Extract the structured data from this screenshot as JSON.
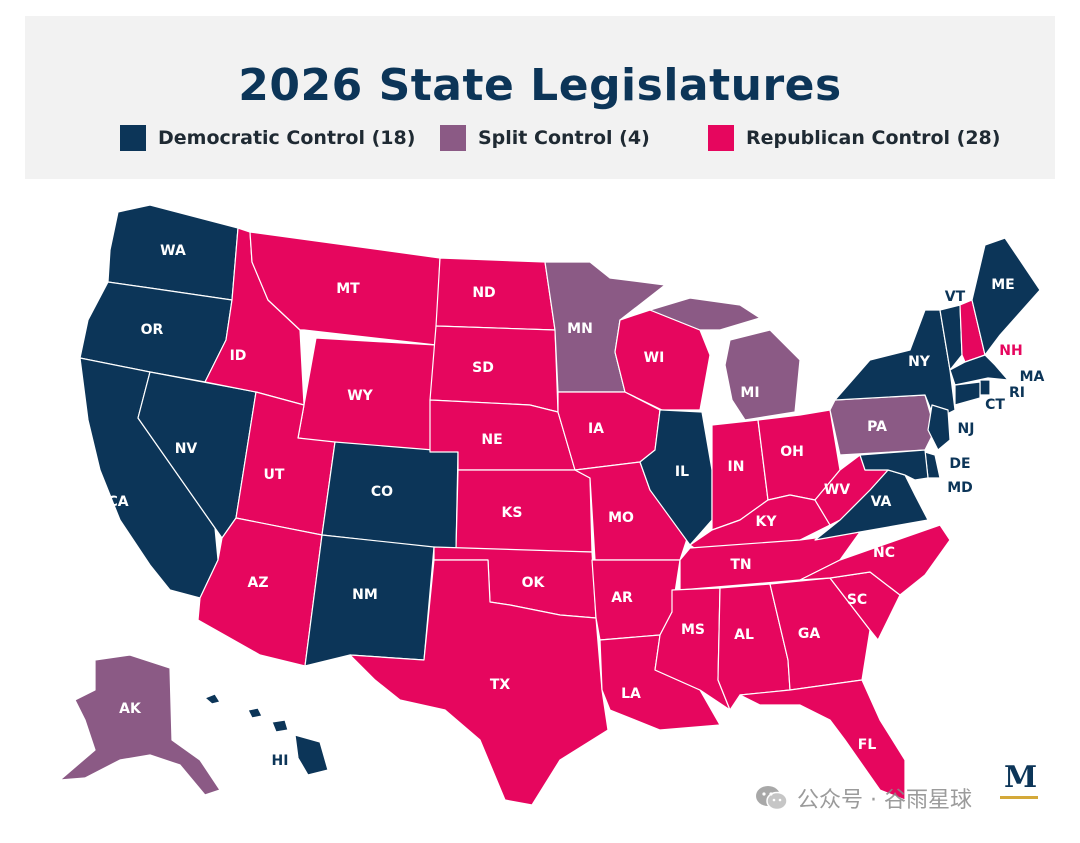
{
  "title": "2026 State Legislatures",
  "colors": {
    "democratic": "#0c3558",
    "split": "#8b5a85",
    "republican": "#e6065e"
  },
  "legend": [
    {
      "label": "Democratic Control (18)",
      "color": "#0c3558"
    },
    {
      "label": "Split Control (4)",
      "color": "#8b5a85"
    },
    {
      "label": "Republican Control (28)",
      "color": "#e6065e"
    }
  ],
  "states": {
    "WA": "WA",
    "OR": "OR",
    "CA": "CA",
    "NV": "NV",
    "ID": "ID",
    "MT": "MT",
    "WY": "WY",
    "UT": "UT",
    "AZ": "AZ",
    "CO": "CO",
    "NM": "NM",
    "ND": "ND",
    "SD": "SD",
    "NE": "NE",
    "KS": "KS",
    "OK": "OK",
    "TX": "TX",
    "MN": "MN",
    "IA": "IA",
    "MO": "MO",
    "AR": "AR",
    "LA": "LA",
    "WI": "WI",
    "IL": "IL",
    "MI": "MI",
    "IN": "IN",
    "OH": "OH",
    "KY": "KY",
    "TN": "TN",
    "MS": "MS",
    "AL": "AL",
    "GA": "GA",
    "FL": "FL",
    "SC": "SC",
    "NC": "NC",
    "VA": "VA",
    "WV": "WV",
    "PA": "PA",
    "NY": "NY",
    "VT": "VT",
    "NH": "NH",
    "ME": "ME",
    "MA": "MA",
    "RI": "RI",
    "CT": "CT",
    "NJ": "NJ",
    "DE": "DE",
    "MD": "MD",
    "AK": "AK",
    "HI": "HI"
  },
  "watermark": "公众号 · 谷雨星球",
  "logo": "M"
}
